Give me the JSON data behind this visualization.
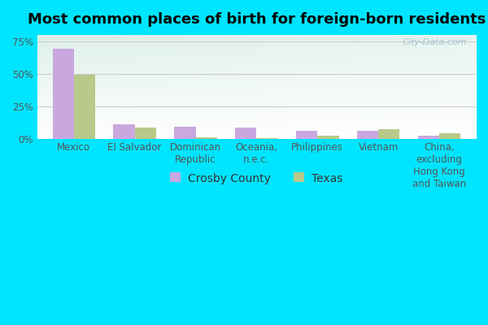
{
  "title": "Most common places of birth for foreign-born residents",
  "categories": [
    "Mexico",
    "El Salvador",
    "Dominican\nRepublic",
    "Oceania,\nn.e.c.",
    "Philippines",
    "Vietnam",
    "China,\nexcluding\nHong Kong\nand Taiwan"
  ],
  "crosby_values": [
    69,
    11,
    9,
    8.5,
    6,
    6,
    2
  ],
  "texas_values": [
    49,
    8.5,
    0.8,
    0.5,
    2.5,
    7,
    4
  ],
  "crosby_color": "#c9a8e0",
  "texas_color": "#b8c98a",
  "background_color": "#00e5ff",
  "ylabel_ticks": [
    0,
    25,
    50,
    75
  ],
  "ylabel_labels": [
    "0%",
    "25%",
    "50%",
    "75%"
  ],
  "ylim": [
    0,
    80
  ],
  "bar_width": 0.35,
  "title_fontsize": 13,
  "tick_fontsize": 8.5,
  "legend_fontsize": 10,
  "watermark": "City-Data.com",
  "tick_color": "#555555",
  "grid_color": "#cccccc"
}
